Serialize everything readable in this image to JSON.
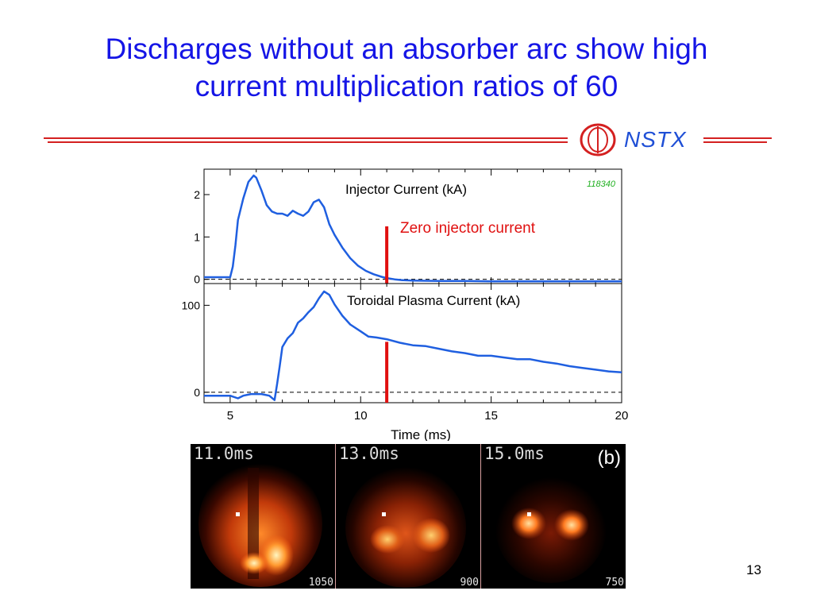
{
  "title": {
    "line1": "Discharges without an absorber arc show high",
    "line2": "current multiplication ratios of 60"
  },
  "logo": {
    "text": "NSTX"
  },
  "colors": {
    "title": "#1515e6",
    "rule": "#d42020",
    "series": "#1f5fe0",
    "marker": "#e01010",
    "annotation": "#e01010",
    "shot": "#20b020"
  },
  "chart_data": [
    {
      "type": "line",
      "title": "Injector Current (kA)",
      "shot_label": "118340",
      "xlim": [
        4,
        20
      ],
      "ylim": [
        -0.1,
        2.6
      ],
      "yticks": [
        0,
        1,
        2
      ],
      "grid": false,
      "reference_line": {
        "y": 0,
        "style": "dashed"
      },
      "marker_line": {
        "x": 11,
        "label": "Zero injector current"
      },
      "series": [
        {
          "x": [
            4,
            4.5,
            5,
            5.1,
            5.2,
            5.3,
            5.5,
            5.7,
            5.9,
            6.0,
            6.2,
            6.4,
            6.6,
            6.8,
            7.0,
            7.2,
            7.4,
            7.6,
            7.8,
            8.0,
            8.2,
            8.4,
            8.6,
            8.8,
            9.0,
            9.3,
            9.6,
            9.9,
            10.2,
            10.5,
            10.8,
            11.0,
            11.3,
            11.6,
            12,
            13,
            14,
            15,
            16,
            17,
            18,
            19,
            20
          ],
          "y": [
            0.05,
            0.05,
            0.05,
            0.3,
            0.8,
            1.4,
            1.9,
            2.3,
            2.45,
            2.4,
            2.1,
            1.75,
            1.6,
            1.55,
            1.55,
            1.5,
            1.62,
            1.55,
            1.5,
            1.6,
            1.82,
            1.88,
            1.7,
            1.3,
            1.05,
            0.75,
            0.5,
            0.32,
            0.2,
            0.12,
            0.06,
            0.03,
            0.0,
            -0.02,
            -0.03,
            -0.04,
            -0.04,
            -0.05,
            -0.05,
            -0.05,
            -0.05,
            -0.05,
            -0.05
          ]
        }
      ]
    },
    {
      "type": "line",
      "title": "Toroidal Plasma Current (kA)",
      "xlim": [
        4,
        20
      ],
      "ylim": [
        -12,
        125
      ],
      "yticks": [
        0,
        100
      ],
      "xticks": [
        5,
        10,
        15,
        20
      ],
      "xlabel": "Time (ms)",
      "grid": false,
      "reference_line": {
        "y": 0,
        "style": "dashed"
      },
      "marker_line": {
        "x": 11,
        "label": ""
      },
      "series": [
        {
          "x": [
            4,
            4.5,
            5,
            5.3,
            5.5,
            5.8,
            6.2,
            6.5,
            6.7,
            6.8,
            6.9,
            7.0,
            7.2,
            7.4,
            7.6,
            7.8,
            8.0,
            8.2,
            8.4,
            8.6,
            8.8,
            9.0,
            9.3,
            9.6,
            10.0,
            10.3,
            10.6,
            11.0,
            11.5,
            12,
            12.5,
            13,
            13.5,
            14,
            14.5,
            15,
            15.5,
            16,
            16.5,
            17,
            17.5,
            18,
            18.5,
            19,
            19.5,
            20
          ],
          "y": [
            -4,
            -4,
            -4,
            -7,
            -4,
            -2,
            -2,
            -4,
            -9,
            10,
            30,
            52,
            62,
            68,
            80,
            85,
            92,
            98,
            108,
            116,
            112,
            101,
            88,
            78,
            70,
            64,
            63,
            61,
            57,
            54,
            53,
            50,
            47,
            45,
            42,
            42,
            40,
            38,
            38,
            35,
            33,
            30,
            28,
            26,
            24,
            23
          ]
        }
      ]
    }
  ],
  "frames": [
    {
      "time": "11.0ms",
      "number": "1050"
    },
    {
      "time": "13.0ms",
      "number": "900"
    },
    {
      "time": "15.0ms",
      "number": "750"
    }
  ],
  "frames_label": "(b)",
  "page_number": "13"
}
